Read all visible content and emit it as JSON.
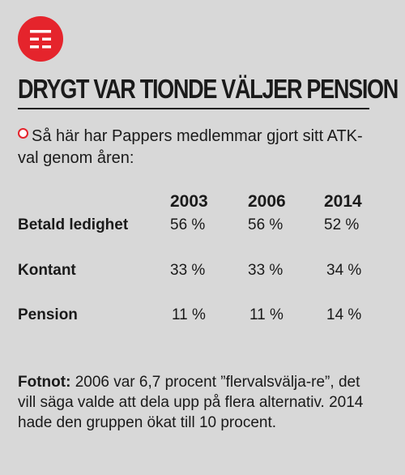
{
  "logo": {
    "icon": "grid-lines-icon",
    "color": "#e5242c"
  },
  "headline": "DRYGT VAR TIONDE VÄLJER PENSION",
  "intro": "Så här har Pappers medlemmar gjort sitt ATK-val genom åren:",
  "table": {
    "years": [
      "2003",
      "2006",
      "2014"
    ],
    "rows": [
      {
        "label": "Betald ledighet",
        "values": [
          "56 %",
          "56 %",
          "52 %"
        ]
      },
      {
        "label": "Kontant",
        "values": [
          "33 %",
          "33 %",
          "34 %"
        ]
      },
      {
        "label": "Pension",
        "values": [
          "11 %",
          "11 %",
          "14 %"
        ]
      }
    ]
  },
  "footnote": {
    "label": "Fotnot:",
    "text": "2006 var 6,7 procent ”flervalsvälja-re”, det vill säga valde att dela upp på flera alternativ. 2014 hade den gruppen ökat till 10 procent."
  },
  "colors": {
    "accent": "#e5242c",
    "background": "#d8d8d8",
    "text": "#1a1a1a"
  }
}
